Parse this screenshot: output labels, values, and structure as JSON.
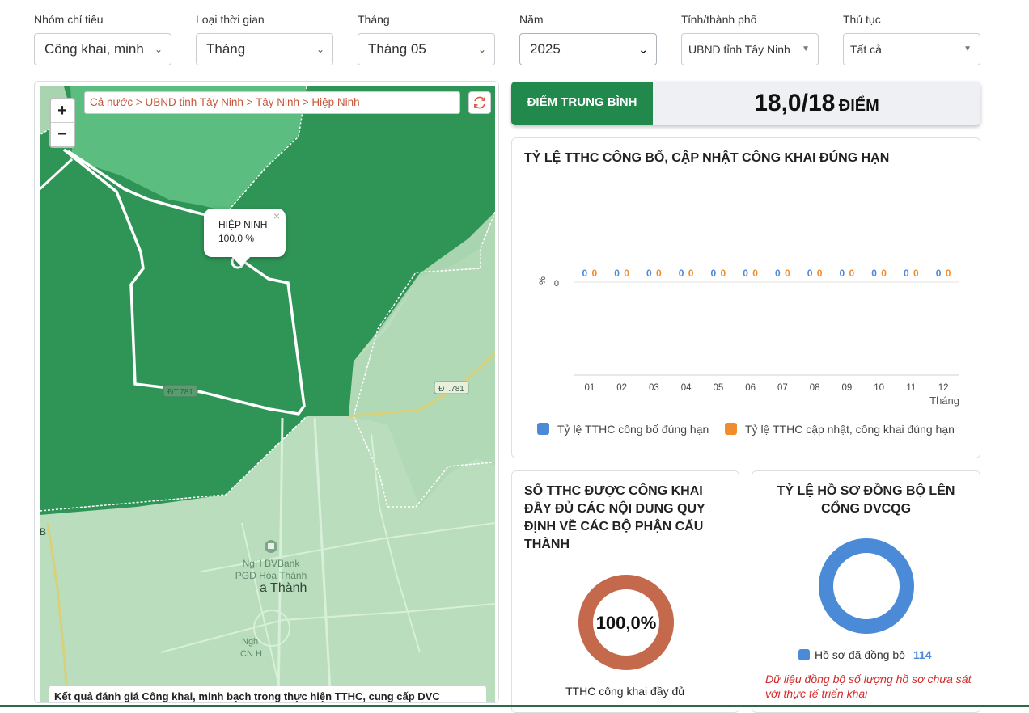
{
  "filters": [
    {
      "label": "Nhóm chỉ tiêu",
      "value": "Công khai, minh"
    },
    {
      "label": "Loại thời gian",
      "value": "Tháng"
    },
    {
      "label": "Tháng",
      "value": "Tháng 05"
    },
    {
      "label": "Năm",
      "value": "2025"
    },
    {
      "label": "Tỉnh/thành phố",
      "value": "UBND tỉnh Tây Ninh"
    },
    {
      "label": "Thủ tục",
      "value": "Tất cả"
    }
  ],
  "map": {
    "zoom_in": "+",
    "zoom_out": "−",
    "breadcrumb": "Cả nước > UBND tỉnh Tây Ninh > Tây Ninh > Hiệp Ninh",
    "popup": {
      "name": "HIỆP NINH",
      "value": "100.0 %",
      "close": "×"
    },
    "road_labels": [
      "ĐT.781",
      "ĐT.781",
      "B"
    ],
    "place_labels": [
      "NgH BVBank",
      "PGD Hòa Thành",
      "a Thành",
      "Ngh",
      "CN H"
    ],
    "caption": "Kết quả đánh giá Công khai, minh bạch trong thực hiện TTHC, cung cấp DVC",
    "colors": {
      "dark": "#2e9156",
      "medium": "#55b97a",
      "light": "#a7d2ad",
      "region_fill": "#bde0c0"
    }
  },
  "score": {
    "label": "ĐIỂM TRUNG BÌNH",
    "value": "18,0/18",
    "unit": "ĐIỂM",
    "color": "#20894b"
  },
  "chart_card": {
    "title": "TỶ LỆ TTHC CÔNG BỐ, CẬP NHẬT CÔNG KHAI ĐÚNG HẠN"
  },
  "chart_data": {
    "type": "bar",
    "categories": [
      "01",
      "02",
      "03",
      "04",
      "05",
      "06",
      "07",
      "08",
      "09",
      "10",
      "11",
      "12"
    ],
    "series": [
      {
        "name": "Tỷ lệ TTHC công bố đúng hạn",
        "color": "#4a8ad6",
        "values": [
          0,
          0,
          0,
          0,
          0,
          0,
          0,
          0,
          0,
          0,
          0,
          0
        ]
      },
      {
        "name": "Tỷ lệ TTHC cập nhật, công khai đúng hạn",
        "color": "#f08c2e",
        "values": [
          0,
          0,
          0,
          0,
          0,
          0,
          0,
          0,
          0,
          0,
          0,
          0
        ]
      }
    ],
    "xlabel": "Tháng",
    "ylabel": "%",
    "y_tick_labels": [
      "0"
    ],
    "legend": "bottom"
  },
  "donut1": {
    "title_lines": [
      "SỐ TTHC ĐƯỢC CÔNG KHAI",
      "ĐẦY ĐỦ CÁC NỘI DUNG QUY",
      "ĐỊNH VỀ CÁC BỘ PHẬN CẤU",
      "THÀNH"
    ],
    "center_value": "100,0%",
    "percent": 100,
    "color": "#c4694b",
    "caption": "TTHC công khai đầy đủ"
  },
  "donut2": {
    "title_lines": [
      "TỶ LỆ HỒ SƠ ĐỒNG BỘ LÊN",
      "CỔNG DVCQG"
    ],
    "percent": 100,
    "color": "#4a8ad6",
    "legend_label": "Hồ sơ đã đồng bộ",
    "legend_count": "114",
    "note_lines": [
      "Dữ liệu đồng bộ số lượng hồ sơ chưa sát",
      "với thực tế triển khai"
    ]
  }
}
